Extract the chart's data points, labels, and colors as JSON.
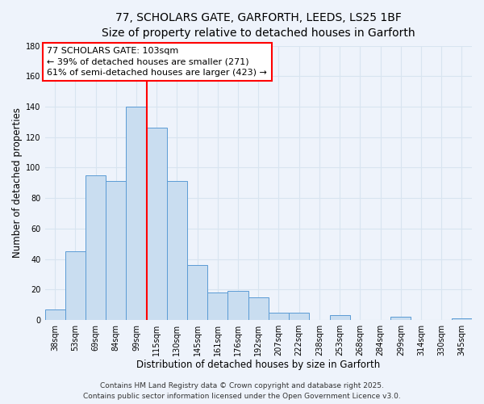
{
  "title_line1": "77, SCHOLARS GATE, GARFORTH, LEEDS, LS25 1BF",
  "title_line2": "Size of property relative to detached houses in Garforth",
  "xlabel": "Distribution of detached houses by size in Garforth",
  "ylabel": "Number of detached properties",
  "bar_labels": [
    "38sqm",
    "53sqm",
    "69sqm",
    "84sqm",
    "99sqm",
    "115sqm",
    "130sqm",
    "145sqm",
    "161sqm",
    "176sqm",
    "192sqm",
    "207sqm",
    "222sqm",
    "238sqm",
    "253sqm",
    "268sqm",
    "284sqm",
    "299sqm",
    "314sqm",
    "330sqm",
    "345sqm"
  ],
  "bar_heights": [
    7,
    45,
    95,
    91,
    140,
    126,
    91,
    36,
    18,
    19,
    15,
    5,
    5,
    0,
    3,
    0,
    0,
    2,
    0,
    0,
    1
  ],
  "bar_color": "#c9ddf0",
  "bar_edge_color": "#5b9bd5",
  "vline_x": 4.5,
  "vline_color": "red",
  "annotation_line1": "77 SCHOLARS GATE: 103sqm",
  "annotation_line2": "← 39% of detached houses are smaller (271)",
  "annotation_line3": "61% of semi-detached houses are larger (423) →",
  "ylim": [
    0,
    180
  ],
  "yticks": [
    0,
    20,
    40,
    60,
    80,
    100,
    120,
    140,
    160,
    180
  ],
  "footer_line1": "Contains HM Land Registry data © Crown copyright and database right 2025.",
  "footer_line2": "Contains public sector information licensed under the Open Government Licence v3.0.",
  "background_color": "#eef3fb",
  "grid_color": "#d8e4f0",
  "title_fontsize": 10,
  "subtitle_fontsize": 9,
  "axis_label_fontsize": 8.5,
  "tick_fontsize": 7,
  "annotation_fontsize": 8,
  "footer_fontsize": 6.5
}
